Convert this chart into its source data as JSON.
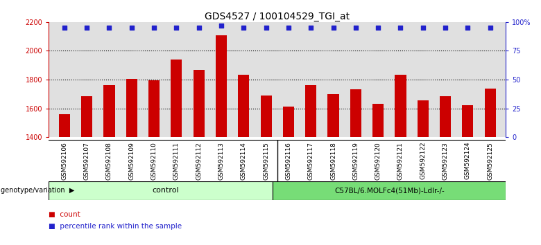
{
  "title": "GDS4527 / 100104529_TGI_at",
  "categories": [
    "GSM592106",
    "GSM592107",
    "GSM592108",
    "GSM592109",
    "GSM592110",
    "GSM592111",
    "GSM592112",
    "GSM592113",
    "GSM592114",
    "GSM592115",
    "GSM592116",
    "GSM592117",
    "GSM592118",
    "GSM592119",
    "GSM592120",
    "GSM592121",
    "GSM592122",
    "GSM592123",
    "GSM592124",
    "GSM592125"
  ],
  "bar_values": [
    1558,
    1685,
    1762,
    1805,
    1795,
    1942,
    1868,
    2108,
    1832,
    1690,
    1615,
    1762,
    1700,
    1735,
    1630,
    1835,
    1655,
    1685,
    1620,
    1740
  ],
  "percentile_values": [
    95,
    95,
    95,
    95,
    95,
    95,
    95,
    97,
    95,
    95,
    95,
    95,
    95,
    95,
    95,
    95,
    95,
    95,
    95,
    95
  ],
  "bar_color": "#cc0000",
  "dot_color": "#2222cc",
  "ylim_left": [
    1400,
    2200
  ],
  "ylim_right": [
    0,
    100
  ],
  "yticks_left": [
    1400,
    1600,
    1800,
    2000,
    2200
  ],
  "yticks_right": [
    0,
    25,
    50,
    75,
    100
  ],
  "ytick_labels_right": [
    "0",
    "25",
    "50",
    "75",
    "100%"
  ],
  "grid_values": [
    1600,
    1800,
    2000
  ],
  "control_label": "control",
  "treatment_label": "C57BL/6.MOLFc4(51Mb)-Ldlr-/-",
  "control_count": 10,
  "treatment_count": 10,
  "xlabel_bottom": "genotype/variation",
  "legend_count": "count",
  "legend_percentile": "percentile rank within the sample",
  "bg_color": "#e0e0e0",
  "control_color": "#ccffcc",
  "treatment_color": "#77dd77",
  "title_fontsize": 10,
  "tick_fontsize": 7,
  "bar_width": 0.5,
  "ymin": 1400
}
